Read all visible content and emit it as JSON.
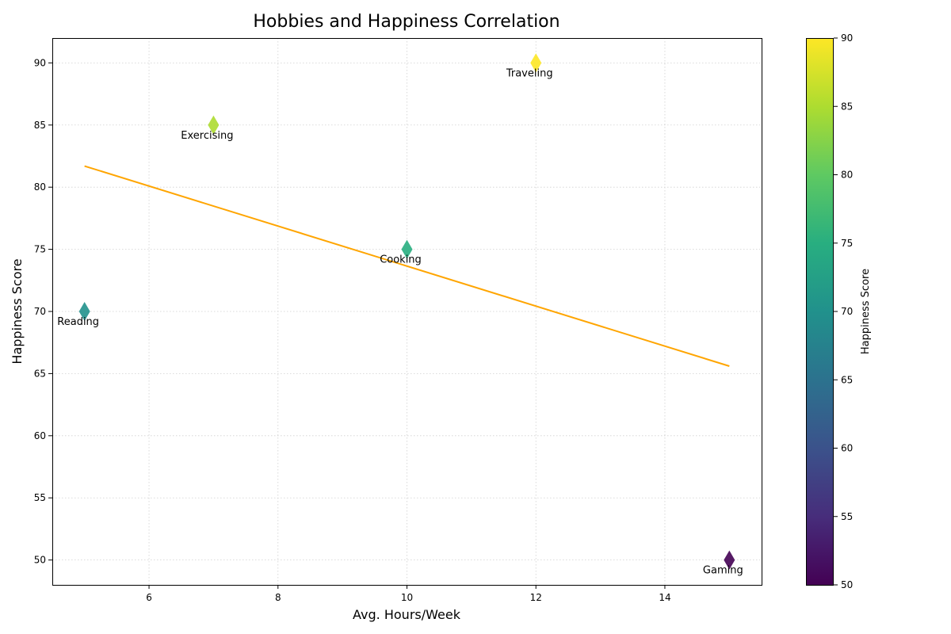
{
  "chart_data": {
    "type": "scatter",
    "title": "Hobbies and Happiness Correlation",
    "xlabel": "Avg. Hours/Week",
    "ylabel": "Happiness Score",
    "xlim": [
      4.5,
      15.5
    ],
    "ylim": [
      48,
      92
    ],
    "xticks": [
      6,
      8,
      10,
      12,
      14
    ],
    "yticks": [
      50,
      55,
      60,
      65,
      70,
      75,
      80,
      85,
      90
    ],
    "grid": true,
    "points": [
      {
        "label": "Reading",
        "x": 5,
        "y": 70
      },
      {
        "label": "Exercising",
        "x": 7,
        "y": 85
      },
      {
        "label": "Cooking",
        "x": 10,
        "y": 75
      },
      {
        "label": "Traveling",
        "x": 12,
        "y": 90
      },
      {
        "label": "Gaming",
        "x": 15,
        "y": 50
      }
    ],
    "trendline": {
      "color": "#ffa500",
      "x": [
        5,
        15
      ],
      "y": [
        81.7,
        65.6
      ]
    },
    "colorbar": {
      "label": "Happiness Score",
      "colormap": "viridis",
      "range": [
        50,
        90
      ],
      "ticks": [
        50,
        55,
        60,
        65,
        70,
        75,
        80,
        85,
        90
      ]
    }
  }
}
